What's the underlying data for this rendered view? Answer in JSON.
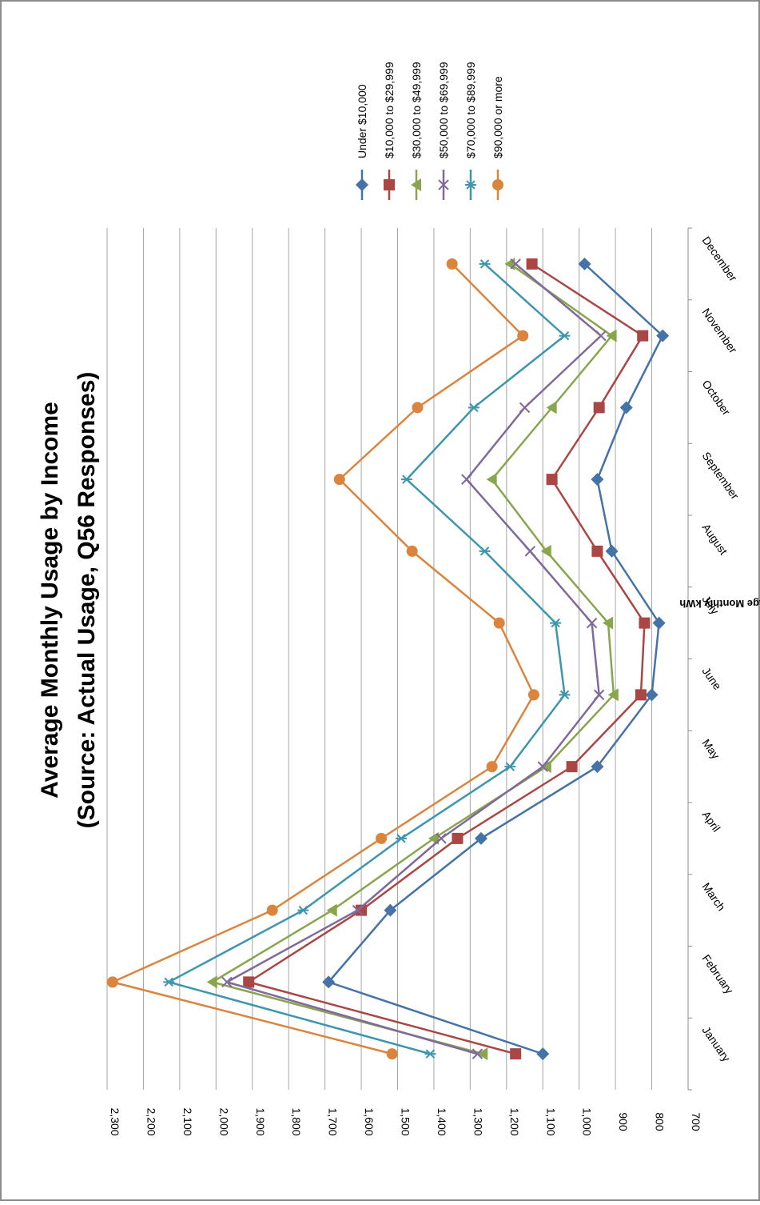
{
  "chart_data": {
    "type": "line",
    "title_line1": "Average Monthly Usage by Income",
    "title_line2": "(Source: Actual Usage, Q56 Responses)",
    "ylabel": "Average Monthly kWh",
    "xlabel": "",
    "ylim": [
      700,
      2300
    ],
    "y_ticks": [
      "700",
      "800",
      "900",
      "1,000",
      "1,100",
      "1,200",
      "1,300",
      "1,400",
      "1,500",
      "1,600",
      "1,700",
      "1,800",
      "1,900",
      "2,000",
      "2,100",
      "2,200",
      "2,300"
    ],
    "y_tick_values": [
      700,
      800,
      900,
      1000,
      1100,
      1200,
      1300,
      1400,
      1500,
      1600,
      1700,
      1800,
      1900,
      2000,
      2100,
      2200,
      2300
    ],
    "categories": [
      "January",
      "February",
      "March",
      "April",
      "May",
      "June",
      "July",
      "August",
      "September",
      "October",
      "November",
      "December"
    ],
    "grid": true,
    "legend_position": "right",
    "rotation": "chart rotated 90 degrees clockwise",
    "series": [
      {
        "name": "Under $10,000",
        "color": "#4572A7",
        "marker": "diamond",
        "values": [
          1100,
          1690,
          1520,
          1270,
          950,
          800,
          780,
          910,
          950,
          870,
          770,
          985
        ]
      },
      {
        "name": "$10,000 to $29,999",
        "color": "#AA4643",
        "marker": "square",
        "values": [
          1175,
          1910,
          1600,
          1335,
          1020,
          830,
          820,
          950,
          1075,
          945,
          825,
          1130
        ]
      },
      {
        "name": "$30,000 to $49,999",
        "color": "#89A54E",
        "marker": "triangle",
        "values": [
          1265,
          2010,
          1680,
          1400,
          1090,
          905,
          920,
          1090,
          1240,
          1075,
          910,
          1190
        ]
      },
      {
        "name": "$50,000 to $69,999",
        "color": "#80699B",
        "marker": "x",
        "values": [
          1280,
          1970,
          1610,
          1380,
          1100,
          945,
          965,
          1135,
          1310,
          1150,
          940,
          1175
        ]
      },
      {
        "name": "$70,000 to $89,999",
        "color": "#3D96AE",
        "marker": "star",
        "values": [
          1410,
          2130,
          1760,
          1490,
          1190,
          1040,
          1065,
          1260,
          1475,
          1290,
          1040,
          1260
        ]
      },
      {
        "name": "$90,000 or more",
        "color": "#DB843D",
        "marker": "circle",
        "values": [
          1515,
          2285,
          1845,
          1545,
          1240,
          1125,
          1220,
          1460,
          1660,
          1445,
          1155,
          1350
        ]
      }
    ]
  }
}
